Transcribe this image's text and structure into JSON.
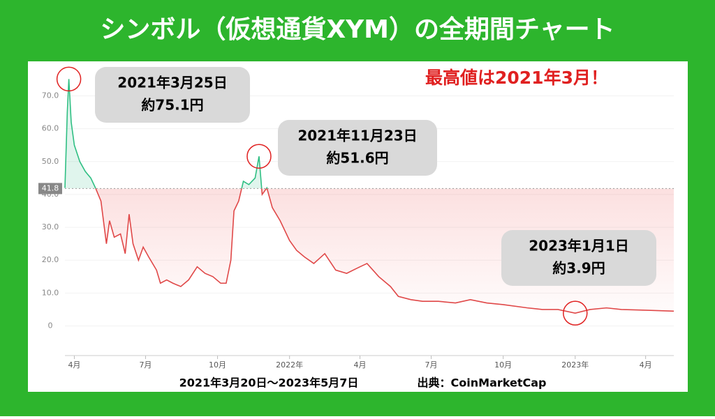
{
  "chart_data": {
    "type": "line",
    "title": "シンボル（仮想通貨XYM）の全期間チャート",
    "headline": "最高値は2021年3月！",
    "period": "2021年3月20日～2023年5月7日",
    "source": "出典：CoinMarketCap",
    "baseline": 41.8,
    "x": [
      "2021-03-20",
      "2021-03-23",
      "2021-03-25",
      "2021-03-28",
      "2021-04-01",
      "2021-04-08",
      "2021-04-15",
      "2021-04-22",
      "2021-04-28",
      "2021-05-05",
      "2021-05-12",
      "2021-05-16",
      "2021-05-22",
      "2021-05-30",
      "2021-06-05",
      "2021-06-10",
      "2021-06-15",
      "2021-06-22",
      "2021-06-28",
      "2021-07-05",
      "2021-07-15",
      "2021-07-20",
      "2021-07-28",
      "2021-08-05",
      "2021-08-15",
      "2021-08-25",
      "2021-09-05",
      "2021-09-15",
      "2021-09-25",
      "2021-10-05",
      "2021-10-12",
      "2021-10-18",
      "2021-10-22",
      "2021-10-28",
      "2021-11-03",
      "2021-11-10",
      "2021-11-18",
      "2021-11-23",
      "2021-11-27",
      "2021-12-03",
      "2021-12-10",
      "2021-12-20",
      "2022-01-01",
      "2022-01-10",
      "2022-01-20",
      "2022-02-01",
      "2022-02-15",
      "2022-03-01",
      "2022-03-15",
      "2022-04-01",
      "2022-04-10",
      "2022-04-25",
      "2022-05-10",
      "2022-05-20",
      "2022-06-05",
      "2022-06-20",
      "2022-07-10",
      "2022-08-01",
      "2022-08-20",
      "2022-09-10",
      "2022-10-01",
      "2022-11-01",
      "2022-11-20",
      "2022-12-10",
      "2023-01-01",
      "2023-01-20",
      "2023-02-10",
      "2023-03-01",
      "2023-04-01",
      "2023-05-07"
    ],
    "values": [
      42,
      65,
      75.1,
      62,
      55,
      50,
      47,
      45,
      42,
      38,
      25,
      32,
      27,
      28,
      22,
      34,
      25,
      20,
      24,
      21,
      17,
      13,
      14,
      13,
      12,
      14,
      18,
      16,
      15,
      13,
      13,
      20,
      35,
      38,
      44,
      43,
      45,
      51.6,
      40,
      42,
      36,
      32,
      26,
      23,
      21,
      19,
      22,
      17,
      16,
      18,
      19,
      15,
      12,
      9,
      8,
      7.5,
      7.5,
      7,
      8,
      7,
      6.5,
      5.5,
      5,
      5,
      3.9,
      5,
      5.5,
      5,
      4.8,
      4.5
    ],
    "xlim": [
      "2021-03-20",
      "2023-05-07"
    ],
    "xticks": [
      {
        "value": "2021-04-01",
        "label": "4月"
      },
      {
        "value": "2021-07-01",
        "label": "7月"
      },
      {
        "value": "2021-10-01",
        "label": "10月"
      },
      {
        "value": "2022-01-01",
        "label": "2022年"
      },
      {
        "value": "2022-04-01",
        "label": "4月"
      },
      {
        "value": "2022-07-01",
        "label": "7月"
      },
      {
        "value": "2022-10-01",
        "label": "10月"
      },
      {
        "value": "2023-01-01",
        "label": "2023年"
      },
      {
        "value": "2023-04-01",
        "label": "4月"
      }
    ],
    "ylim": [
      -9,
      79
    ],
    "yticks": [
      0,
      {
        "value": 10,
        "label": "10.0"
      },
      {
        "value": 20,
        "label": "20.0"
      },
      {
        "value": 30,
        "label": "30.0"
      },
      {
        "value": 40,
        "label": "40.0"
      },
      {
        "value": 50,
        "label": "50.0"
      },
      {
        "value": 60,
        "label": "60.0"
      },
      {
        "value": 70,
        "label": "70.0"
      }
    ],
    "colors": {
      "above": "#2fbf83",
      "below": "#e04848"
    },
    "annotations": [
      {
        "x": "2021-03-25",
        "lines": [
          "2021年3月25日",
          "約75.1円"
        ]
      },
      {
        "x": "2021-11-23",
        "lines": [
          "2021年11月23日",
          "約51.6円"
        ]
      },
      {
        "x": "2023-01-01",
        "lines": [
          "2023年1月1日",
          "約3.9円"
        ]
      }
    ]
  }
}
